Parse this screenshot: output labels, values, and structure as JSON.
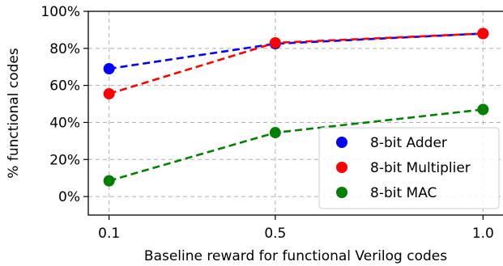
{
  "chart_data": {
    "type": "line",
    "title": "",
    "xlabel": "Baseline reward for functional Verilog codes",
    "ylabel": "% functional codes",
    "x": [
      0.1,
      0.5,
      1.0
    ],
    "x_tick_labels": [
      "0.1",
      "0.5",
      "1.0"
    ],
    "xlim": [
      0.05,
      1.05
    ],
    "ylim": [
      -10,
      100
    ],
    "y_ticks": [
      0,
      20,
      40,
      60,
      80,
      100
    ],
    "y_tick_labels": [
      "0%",
      "20%",
      "40%",
      "60%",
      "80%",
      "100%"
    ],
    "grid": true,
    "legend_position": "lower-right",
    "series": [
      {
        "name": "8-bit Adder",
        "color": "#0000ff",
        "values": [
          69,
          82.5,
          88
        ]
      },
      {
        "name": "8-bit Multiplier",
        "color": "#ff0000",
        "values": [
          55.5,
          83,
          88
        ]
      },
      {
        "name": "8-bit MAC",
        "color": "#008000",
        "values": [
          8.5,
          34.5,
          47
        ]
      }
    ]
  }
}
